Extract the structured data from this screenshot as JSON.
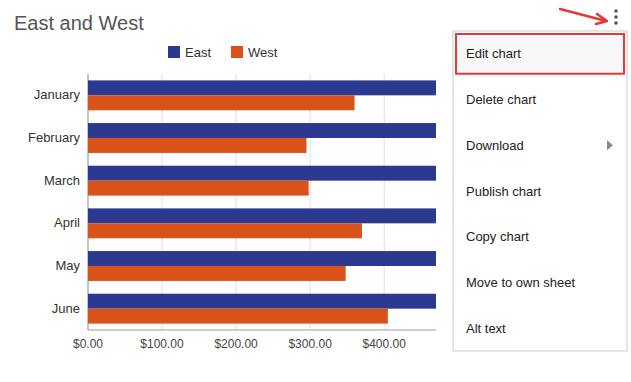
{
  "chart_data": {
    "type": "bar",
    "orientation": "horizontal",
    "title": "East and West",
    "categories": [
      "January",
      "February",
      "March",
      "April",
      "May",
      "June"
    ],
    "series": [
      {
        "name": "East",
        "color": "#2b3990",
        "values": [
          470,
          470,
          470,
          470,
          470,
          470
        ]
      },
      {
        "name": "West",
        "color": "#d95219",
        "values": [
          360,
          295,
          298,
          370,
          348,
          405
        ]
      }
    ],
    "xlim": [
      0,
      470
    ],
    "xticks": [
      {
        "value": 0,
        "label": "$0.00"
      },
      {
        "value": 100,
        "label": "$100.00"
      },
      {
        "value": 200,
        "label": "$200.00"
      },
      {
        "value": 300,
        "label": "$300.00"
      },
      {
        "value": 400,
        "label": "$400.00"
      }
    ],
    "grid": true,
    "legend": "top",
    "annotations": [
      "Edit chart",
      "Delete chart",
      "Download",
      "Publish chart",
      "Copy chart",
      "Move to own sheet",
      "Alt text"
    ]
  }
}
